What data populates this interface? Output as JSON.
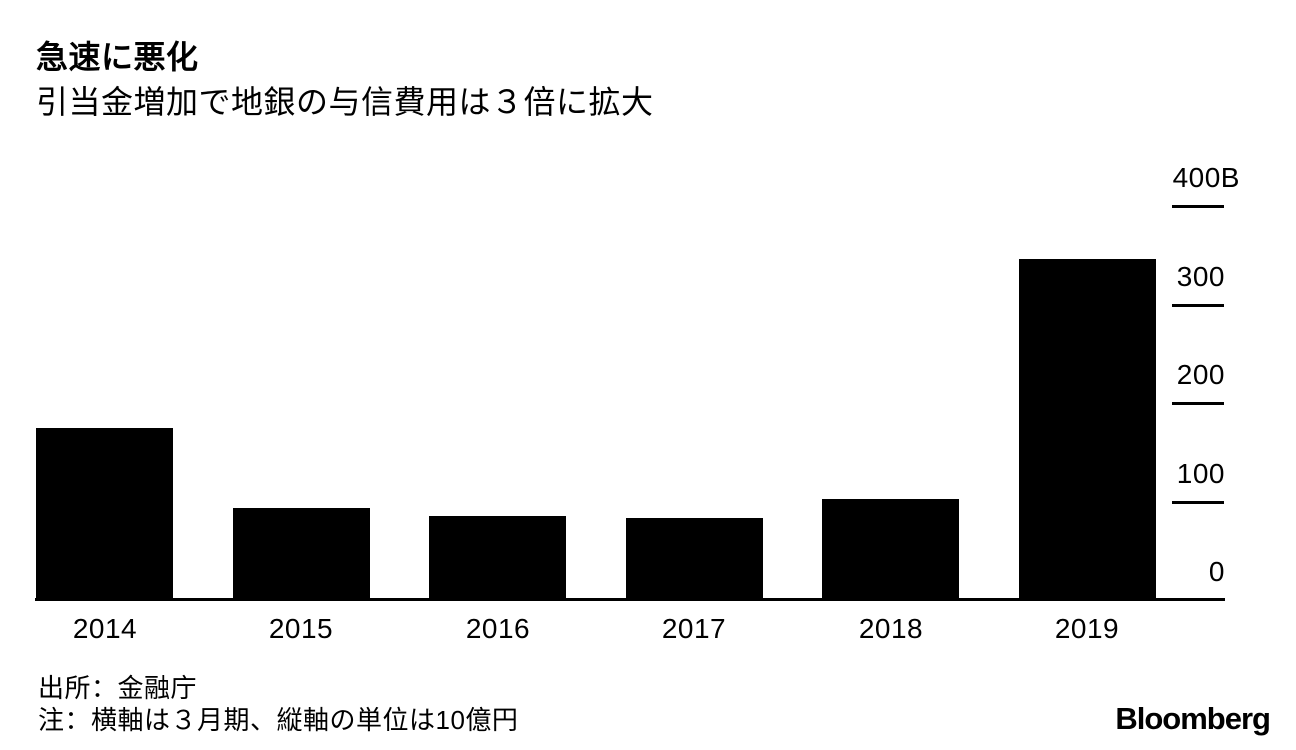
{
  "chart_data": {
    "type": "bar",
    "title": "急速に悪化",
    "subtitle": "引当金増加で地銀の与信費用は３倍に拡大",
    "categories": [
      "2014",
      "2015",
      "2016",
      "2017",
      "2018",
      "2019"
    ],
    "values": [
      176,
      94,
      86,
      84,
      104,
      347
    ],
    "y_ticks": [
      400,
      300,
      200,
      100,
      0
    ],
    "y_tick_labels": [
      "400B",
      "300",
      "200",
      "100",
      "0"
    ],
    "ylim": [
      0,
      400
    ],
    "axis_position": "right",
    "grid": false,
    "bar_color": "#000000",
    "background_color": "#ffffff",
    "source": "出所：金融庁",
    "note": "注：横軸は３月期、縦軸の単位は10億円"
  },
  "branding": {
    "logo": "Bloomberg"
  }
}
